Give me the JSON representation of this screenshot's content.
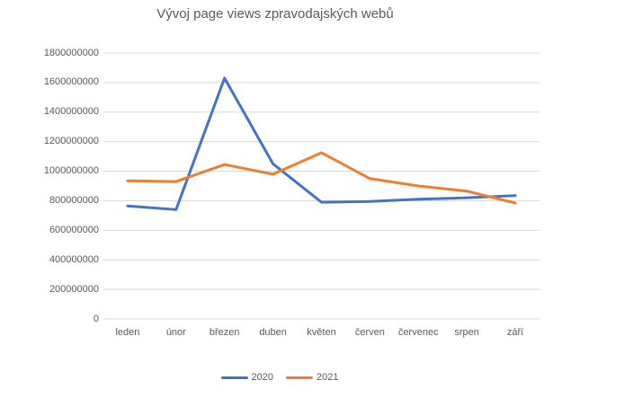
{
  "chart_data": {
    "type": "line",
    "title": "Vývoj page views zpravodajských webů",
    "categories": [
      "leden",
      "únor",
      "březen",
      "duben",
      "květen",
      "červen",
      "červenec",
      "srpen",
      "září"
    ],
    "series": [
      {
        "name": "2020",
        "color": "#4472C4",
        "values": [
          765000000,
          740000000,
          1630000000,
          1050000000,
          790000000,
          795000000,
          810000000,
          820000000,
          835000000
        ]
      },
      {
        "name": "2021",
        "color": "#ED7D31",
        "values": [
          935000000,
          930000000,
          1045000000,
          980000000,
          1125000000,
          950000000,
          900000000,
          865000000,
          785000000
        ]
      }
    ],
    "xlabel": "",
    "ylabel": "",
    "ylim": [
      0,
      1800000000
    ],
    "ytick_step": 200000000,
    "ytick_labels": [
      "0",
      "200000000",
      "400000000",
      "600000000",
      "800000000",
      "1000000000",
      "1200000000",
      "1400000000",
      "1600000000",
      "1800000000"
    ],
    "grid": true,
    "legend_position": "bottom"
  },
  "colors": {
    "text": "#595959",
    "grid": "#D9D9D9",
    "background": "#FFFFFF"
  }
}
